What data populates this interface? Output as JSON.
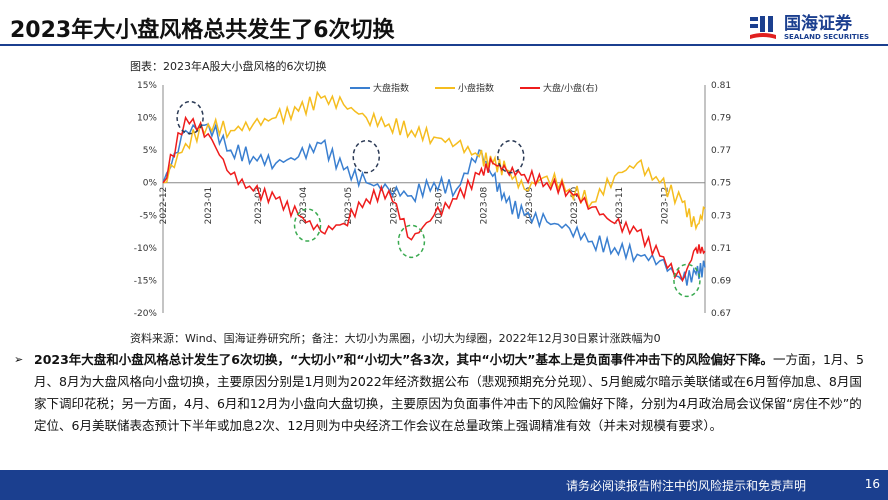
{
  "header": {
    "title": "2023年大小盘风格总共发生了6次切换",
    "logo_cn": "国海证券",
    "logo_en": "SEALAND SECURITIES"
  },
  "chart_title": "图表：2023年A股大小盘风格的6次切换",
  "source": "资料来源：Wind、国海证券研究所；备注：大切小为黑圈，小切大为绿圈，2022年12月30日累计涨跌幅为0",
  "body": {
    "bold": "2023年大盘和小盘风格总计发生了6次切换，“大切小”和“小切大”各3次，其中“小切大”基本上是负面事件冲击下的风险偏好下降。",
    "text": "一方面，1月、5月、8月为大盘风格向小盘切换，主要原因分别是1月则为2022年经济数据公布（悲观预期充分兑现）、5月鲍威尔暗示美联储或在6月暂停加息、8月国家下调印花税；另一方面，4月、6月和12月为小盘向大盘切换，主要原因为负面事件冲击下的风险偏好下降，分别为4月政治局会议保留“房住不炒”的定位、6月美联储表态预计下半年或加息2次、12月则为中央经济工作会议在总量政策上强调精准有效（并未对规模有要求）。"
  },
  "footer": {
    "disclaimer": "请务必阅读报告附注中的风险提示和免责声明",
    "page": "16"
  },
  "colors": {
    "brand": "#1b3f8f",
    "large": "#3a7fd0",
    "small": "#f5bd1f",
    "ratio": "#ee1c1c",
    "circle_dark": "#2b3a55",
    "circle_green": "#3aaa50"
  },
  "chart_data": {
    "type": "line",
    "x_ticks": [
      "2022-12",
      "2023-01",
      "2023-03",
      "2023-04",
      "2023-05",
      "2023-06",
      "2023-07",
      "2023-08",
      "2023-09",
      "2023-10",
      "2023-11",
      "2023-12"
    ],
    "y_left": {
      "ticks": [
        "15%",
        "10%",
        "5%",
        "0%",
        "-5%",
        "-10%",
        "-15%",
        "-20%"
      ],
      "range": [
        -20,
        15
      ]
    },
    "y_right": {
      "ticks": [
        "0.81",
        "0.79",
        "0.77",
        "0.75",
        "0.73",
        "0.71",
        "0.69",
        "0.67"
      ],
      "range": [
        0.67,
        0.81
      ]
    },
    "legend": "top",
    "months_axis": [
      0,
      0.5,
      1,
      1.5,
      2,
      2.5,
      3,
      3.5,
      4,
      4.5,
      5,
      5.5,
      6,
      6.5,
      7,
      7.3,
      7.6,
      8,
      8.5,
      9,
      9.5,
      10,
      10.5,
      11,
      11.5,
      11.8,
      12
    ],
    "series": [
      {
        "name": "大盘指数",
        "axis": "left",
        "values": [
          0,
          8,
          9,
          5,
          4,
          3,
          4,
          6,
          2,
          0,
          -1,
          -2,
          0,
          -1,
          5,
          1,
          -3,
          -5,
          -6,
          -7,
          -9,
          -10,
          -11,
          -12,
          -15,
          -14,
          -13
        ]
      },
      {
        "name": "小盘指数",
        "axis": "left",
        "values": [
          0,
          6,
          9,
          8,
          9,
          10,
          11,
          13,
          12,
          10,
          9,
          8,
          7,
          6,
          4,
          3,
          2,
          -1,
          1,
          -1,
          -3,
          1,
          3,
          0,
          -3,
          -7,
          -4
        ]
      },
      {
        "name": "大盘/小盘(右)",
        "axis": "right",
        "values": [
          0.75,
          0.79,
          0.78,
          0.755,
          0.745,
          0.74,
          0.73,
          0.72,
          0.725,
          0.74,
          0.745,
          0.715,
          0.73,
          0.74,
          0.755,
          0.762,
          0.758,
          0.755,
          0.75,
          0.745,
          0.735,
          0.725,
          0.72,
          0.705,
          0.69,
          0.71,
          0.708
        ]
      }
    ],
    "circles": [
      {
        "kind": "dark",
        "month": 0.6,
        "value": 10
      },
      {
        "kind": "dark",
        "month": 4.5,
        "value": 4
      },
      {
        "kind": "dark",
        "month": 7.7,
        "value": 4
      },
      {
        "kind": "green",
        "month": 3.2,
        "value": -6.5
      },
      {
        "kind": "green",
        "month": 5.5,
        "value": -9
      },
      {
        "kind": "green",
        "month": 11.6,
        "value": -15
      }
    ]
  }
}
